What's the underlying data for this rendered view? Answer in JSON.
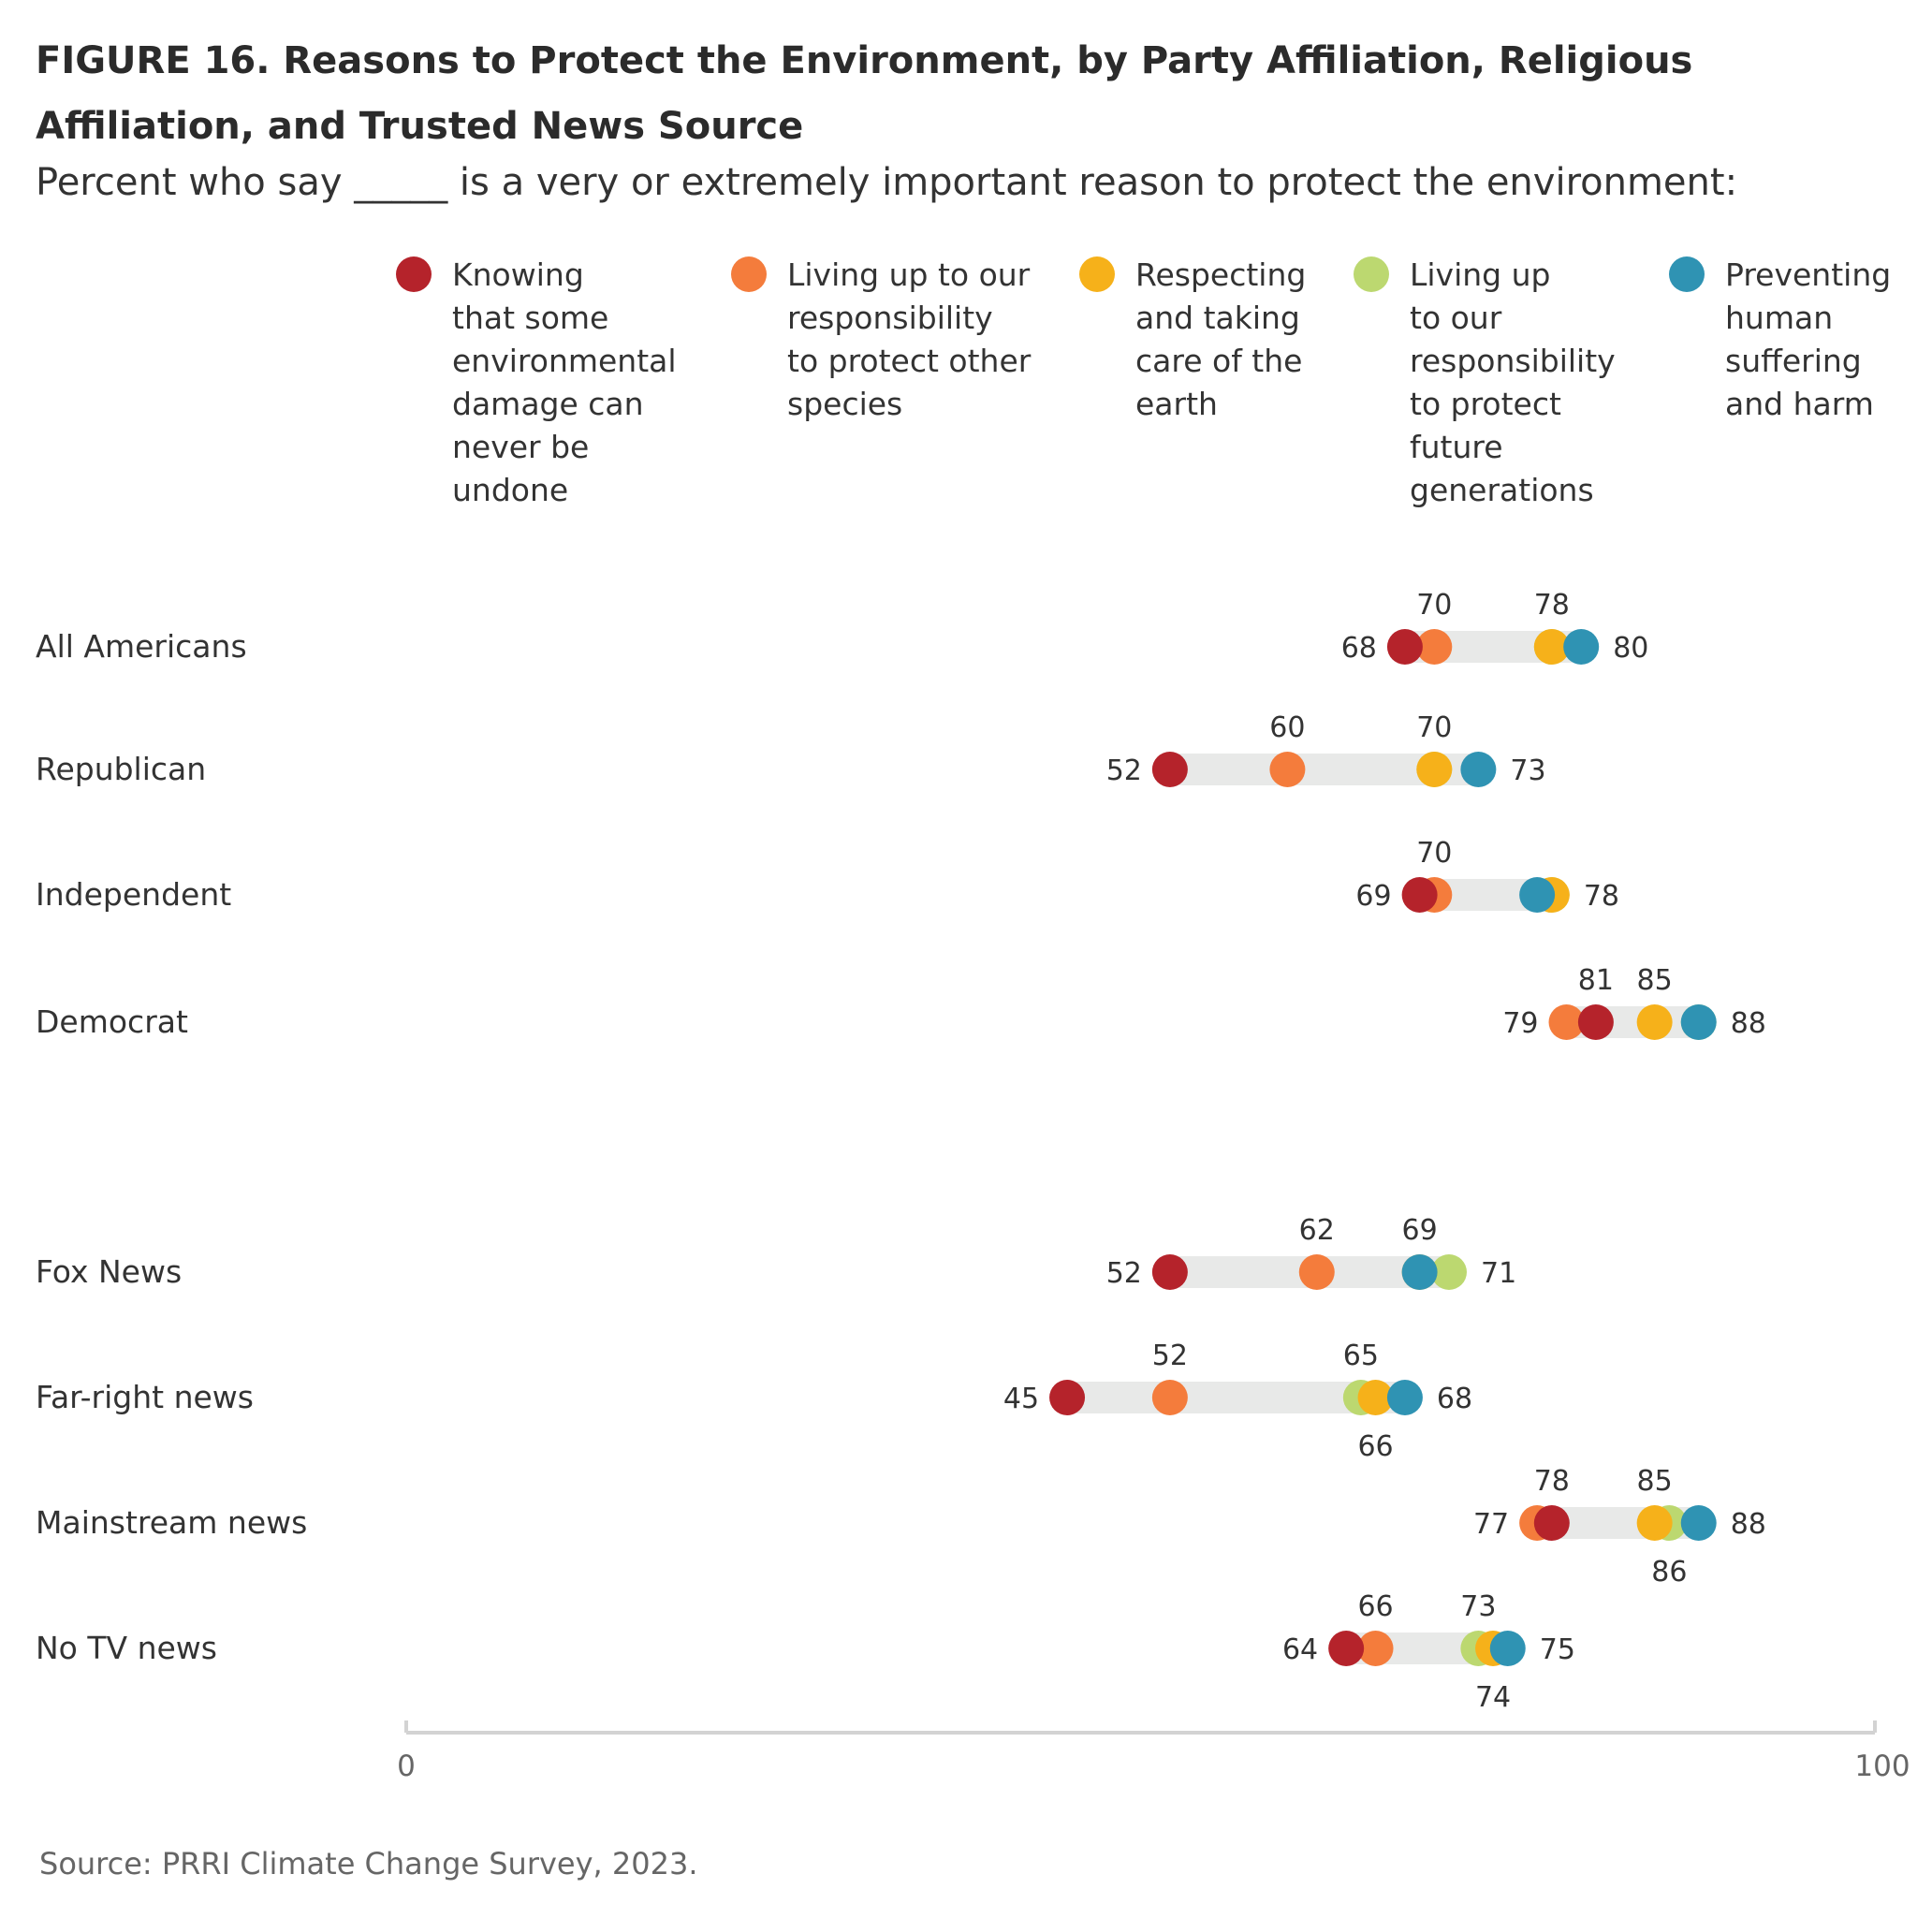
{
  "figure": {
    "title": "FIGURE 16.  Reasons to Protect the Environment, by Party Affiliation, Religious Affiliation, and Trusted News Source",
    "subtitle": "Percent who say _____ is a very or extremely important reason to protect the environment:",
    "source": "Source: PRRI Climate Change Survey, 2023."
  },
  "chart_data": {
    "type": "scatter",
    "subtype": "dot-range",
    "xlim": [
      0,
      100
    ],
    "x_ticks": [
      "0",
      "100"
    ],
    "grid": false,
    "legend_position": "top",
    "series": [
      {
        "name": "Knowing that some environmental damage can never be undone",
        "legend_lines": [
          "Knowing",
          "that some",
          "environmental",
          "damage can",
          "never be",
          "undone"
        ],
        "color": "#b5232b"
      },
      {
        "name": "Living up to our responsibility to protect other species",
        "legend_lines": [
          "Living up to our",
          "responsibility",
          "to protect other",
          "species"
        ],
        "color": "#f47c3c"
      },
      {
        "name": "Respecting and taking care of the earth",
        "legend_lines": [
          "Respecting",
          "and taking",
          "care of the",
          "earth"
        ],
        "color": "#f6b11a"
      },
      {
        "name": "Living up to our responsibility to protect future generations",
        "legend_lines": [
          "Living up",
          "to our",
          "responsibility",
          "to protect",
          "future",
          "generations"
        ],
        "color": "#bcd870"
      },
      {
        "name": "Preventing human suffering and harm",
        "legend_lines": [
          "Preventing",
          "human",
          "suffering",
          "and harm"
        ],
        "color": "#2f93b3"
      }
    ],
    "categories": [
      "All Americans",
      "Republican",
      "Independent",
      "Democrat",
      "Fox News",
      "Far-right news",
      "Mainstream news",
      "No TV news"
    ],
    "values": [
      [
        68,
        70,
        78,
        78,
        80
      ],
      [
        52,
        60,
        70,
        70,
        73
      ],
      [
        69,
        70,
        78,
        78,
        77
      ],
      [
        81,
        79,
        85,
        88,
        88
      ],
      [
        52,
        62,
        69,
        71,
        69
      ],
      [
        45,
        52,
        66,
        65,
        68
      ],
      [
        78,
        77,
        85,
        86,
        88
      ],
      [
        64,
        66,
        74,
        73,
        75
      ]
    ],
    "value_labels": [
      [
        {
          "text": "68",
          "pos": "left",
          "at": 68
        },
        {
          "text": "70",
          "pos": "above",
          "at": 70
        },
        {
          "text": "78",
          "pos": "above",
          "at": 78
        },
        {
          "text": "80",
          "pos": "right",
          "at": 80
        }
      ],
      [
        {
          "text": "52",
          "pos": "left",
          "at": 52
        },
        {
          "text": "60",
          "pos": "above",
          "at": 60
        },
        {
          "text": "70",
          "pos": "above",
          "at": 70
        },
        {
          "text": "73",
          "pos": "right",
          "at": 73
        }
      ],
      [
        {
          "text": "69",
          "pos": "left",
          "at": 69
        },
        {
          "text": "70",
          "pos": "above",
          "at": 70
        },
        {
          "text": "78",
          "pos": "right",
          "at": 78
        }
      ],
      [
        {
          "text": "79",
          "pos": "left",
          "at": 79
        },
        {
          "text": "81",
          "pos": "above",
          "at": 81
        },
        {
          "text": "85",
          "pos": "above",
          "at": 85
        },
        {
          "text": "88",
          "pos": "right",
          "at": 88
        }
      ],
      [
        {
          "text": "52",
          "pos": "left",
          "at": 52
        },
        {
          "text": "62",
          "pos": "above",
          "at": 62
        },
        {
          "text": "69",
          "pos": "above",
          "at": 69
        },
        {
          "text": "71",
          "pos": "right",
          "at": 71
        }
      ],
      [
        {
          "text": "45",
          "pos": "left",
          "at": 45
        },
        {
          "text": "52",
          "pos": "above",
          "at": 52
        },
        {
          "text": "65",
          "pos": "above",
          "at": 65
        },
        {
          "text": "66",
          "pos": "below",
          "at": 66
        },
        {
          "text": "68",
          "pos": "right",
          "at": 68
        }
      ],
      [
        {
          "text": "77",
          "pos": "left",
          "at": 77
        },
        {
          "text": "78",
          "pos": "above",
          "at": 78
        },
        {
          "text": "85",
          "pos": "above",
          "at": 85
        },
        {
          "text": "86",
          "pos": "below",
          "at": 86
        },
        {
          "text": "88",
          "pos": "right",
          "at": 88
        }
      ],
      [
        {
          "text": "64",
          "pos": "left",
          "at": 64
        },
        {
          "text": "66",
          "pos": "above",
          "at": 66
        },
        {
          "text": "73",
          "pos": "above",
          "at": 73
        },
        {
          "text": "74",
          "pos": "below",
          "at": 74
        },
        {
          "text": "75",
          "pos": "right",
          "at": 75
        }
      ]
    ]
  }
}
